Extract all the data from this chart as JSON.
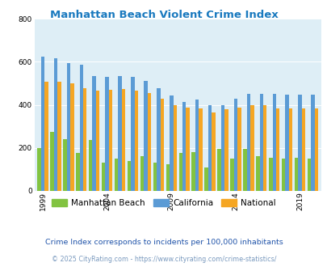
{
  "title": "Manhattan Beach Violent Crime Index",
  "title_color": "#1a7abf",
  "subtitle": "Crime Index corresponds to incidents per 100,000 inhabitants",
  "subtitle_color": "#2255aa",
  "footer": "© 2025 CityRating.com - https://www.cityrating.com/crime-statistics/",
  "footer_color": "#7a9abf",
  "years": [
    1999,
    2000,
    2001,
    2002,
    2003,
    2004,
    2005,
    2006,
    2007,
    2008,
    2009,
    2010,
    2011,
    2012,
    2013,
    2014,
    2015,
    2016,
    2017,
    2018,
    2019,
    2020
  ],
  "manhattan_beach": [
    200,
    275,
    240,
    175,
    235,
    130,
    150,
    140,
    160,
    130,
    125,
    175,
    180,
    108,
    195,
    150,
    195,
    160,
    155,
    150,
    155,
    152
  ],
  "california": [
    622,
    618,
    595,
    585,
    535,
    530,
    535,
    530,
    510,
    477,
    444,
    413,
    423,
    400,
    399,
    428,
    450,
    450,
    450,
    447,
    447,
    447
  ],
  "national": [
    508,
    508,
    500,
    476,
    465,
    468,
    473,
    465,
    455,
    430,
    400,
    388,
    385,
    365,
    380,
    386,
    398,
    400,
    382,
    383,
    383,
    383
  ],
  "mb_color": "#82c341",
  "ca_color": "#5b9bd5",
  "nat_color": "#f5a623",
  "bg_color": "#deeef6",
  "ylim": [
    0,
    800
  ],
  "yticks": [
    0,
    200,
    400,
    600,
    800
  ],
  "legend_labels": [
    "Manhattan Beach",
    "California",
    "National"
  ],
  "tick_years": [
    1999,
    2004,
    2009,
    2014,
    2019
  ]
}
